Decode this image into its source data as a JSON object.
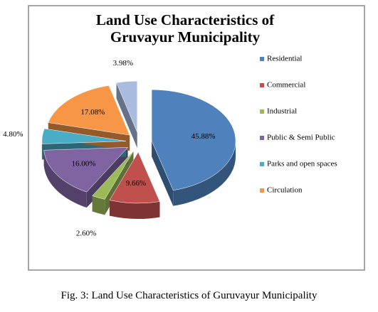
{
  "chart_data": {
    "type": "pie",
    "title": "Land Use Characteristics of Gruvayur Municipality",
    "categories": [
      "Residential",
      "Commercial",
      "Industrial",
      "Public & Semi Public",
      "Parks and open spaces",
      "Circulation",
      null
    ],
    "values": [
      45.88,
      9.66,
      2.6,
      16,
      4.8,
      17.08,
      3.98
    ],
    "value_labels": [
      "45.88%",
      "9.66%",
      "2.60%",
      "16.00%",
      "4.80%",
      "17.08%",
      "3.98%"
    ],
    "colors": [
      "#4f81bd",
      "#c0504d",
      "#9bbb59",
      "#8064a2",
      "#4bacc6",
      "#f79646",
      "#a9bce0"
    ],
    "legend": "right"
  },
  "caption": "Fig. 3: Land Use Characteristics of Guruvayur Municipality"
}
